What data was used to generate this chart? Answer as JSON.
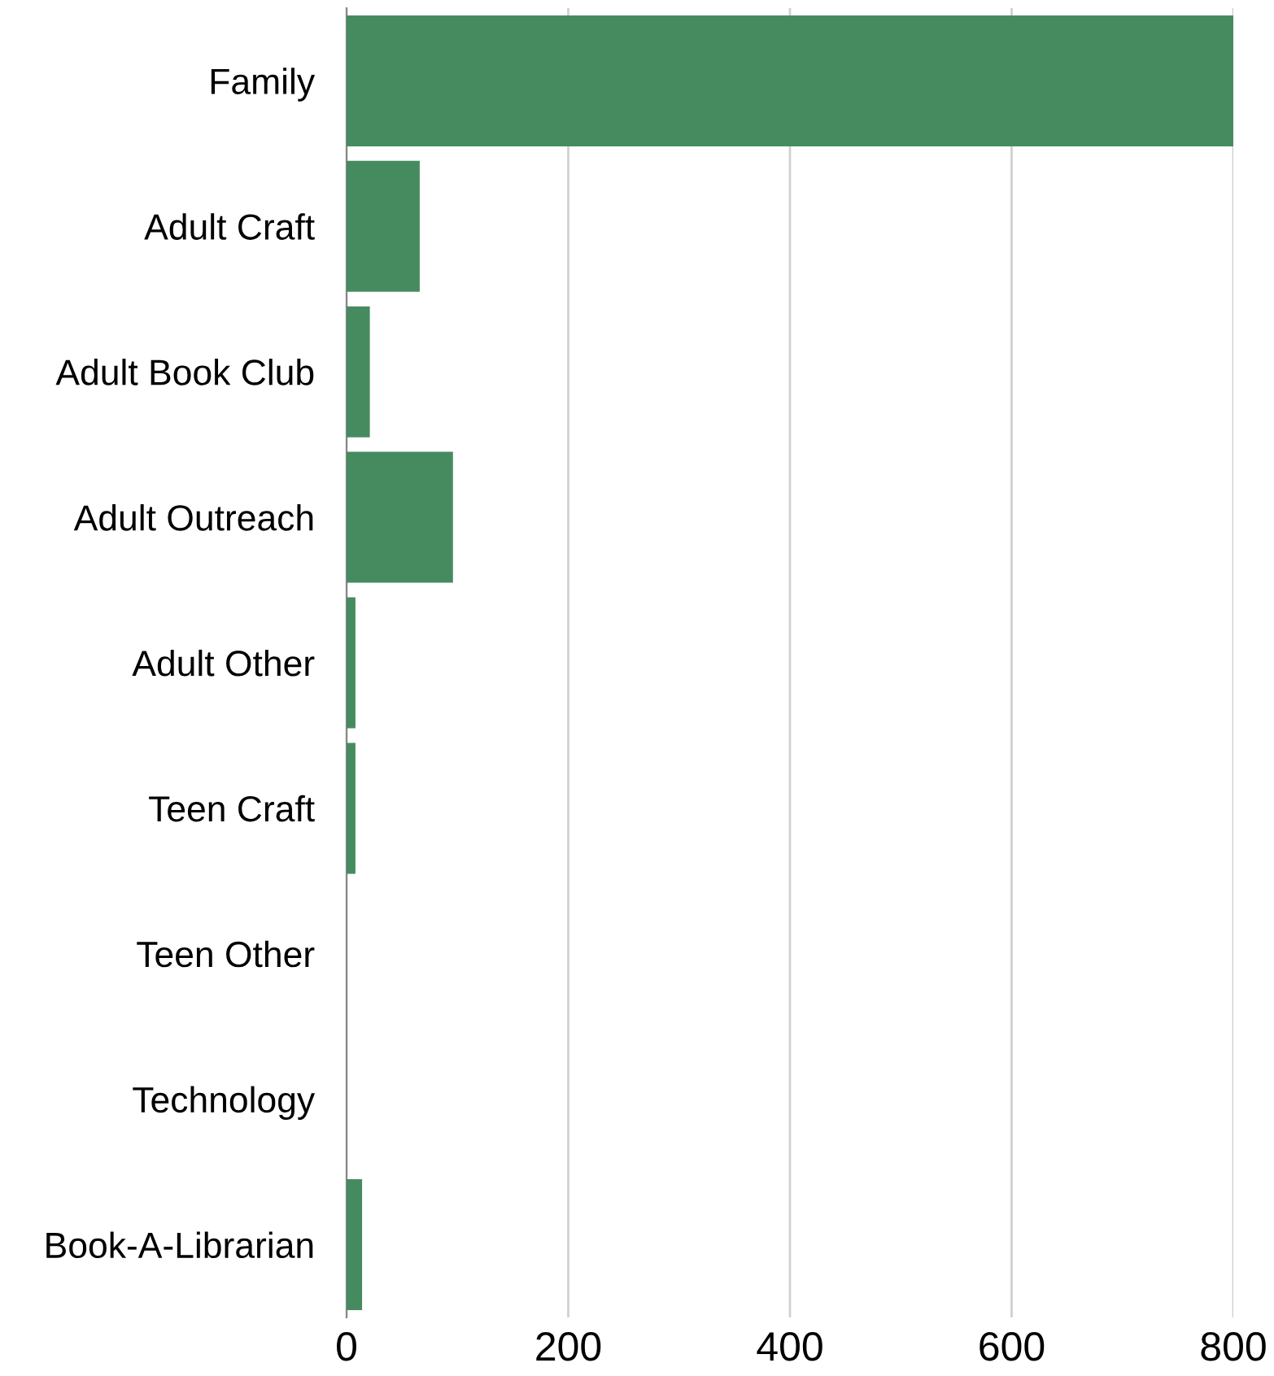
{
  "chart_data": {
    "type": "bar",
    "orientation": "horizontal",
    "categories": [
      "Family",
      "Adult Craft",
      "Adult Book Club",
      "Adult Outreach",
      "Adult Other",
      "Teen Craft",
      "Teen Other",
      "Technology",
      "Book-A-Librarian"
    ],
    "values": [
      800,
      66,
      21,
      96,
      8,
      8,
      0,
      0,
      14
    ],
    "color": "#468b5f",
    "xlim": [
      0,
      800
    ],
    "xticks": [
      0,
      200,
      400,
      600,
      800
    ],
    "grid": "x"
  }
}
